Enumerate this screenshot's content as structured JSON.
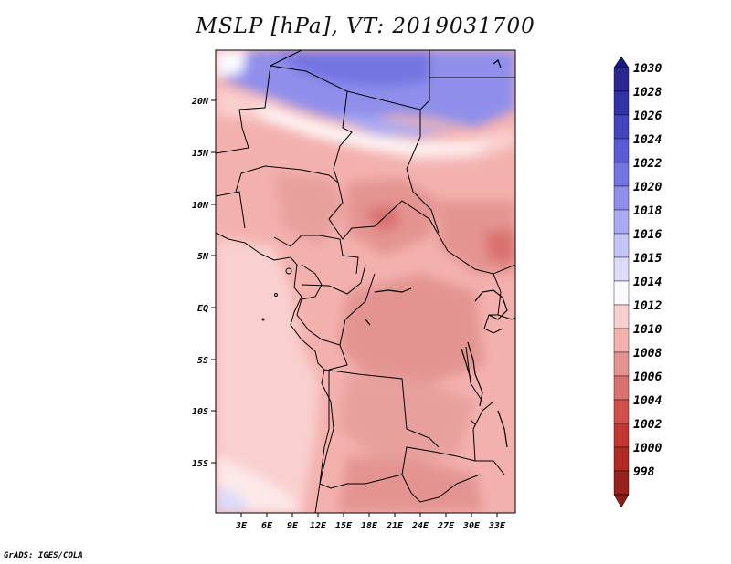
{
  "title": "MSLP [hPa], VT: 2019031700",
  "footer": "GrADS: IGES/COLA",
  "map": {
    "lat_labels": [
      "20N",
      "15N",
      "10N",
      "5N",
      "EQ",
      "5S",
      "10S",
      "15S"
    ],
    "lon_labels": [
      "3E",
      "6E",
      "9E",
      "12E",
      "15E",
      "18E",
      "21E",
      "24E",
      "27E",
      "30E",
      "33E"
    ]
  },
  "colorbar": {
    "levels": [
      "1030",
      "1028",
      "1026",
      "1024",
      "1022",
      "1020",
      "1018",
      "1016",
      "1015",
      "1014",
      "1012",
      "1010",
      "1008",
      "1006",
      "1004",
      "1002",
      "1000",
      "998"
    ],
    "colors": [
      "#2a2790",
      "#3131a8",
      "#4444c0",
      "#5a5ad6",
      "#7474e2",
      "#8f8feb",
      "#aaaaf2",
      "#c5c5f7",
      "#dcdcfa",
      "#fbfbff",
      "#f9d0cf",
      "#f3b1ae",
      "#e39491",
      "#d9716e",
      "#d24e4a",
      "#c43632",
      "#b22822",
      "#98221d"
    ],
    "top_arrow_color": "#1b1a80",
    "bottom_arrow_color": "#8a1c16"
  }
}
